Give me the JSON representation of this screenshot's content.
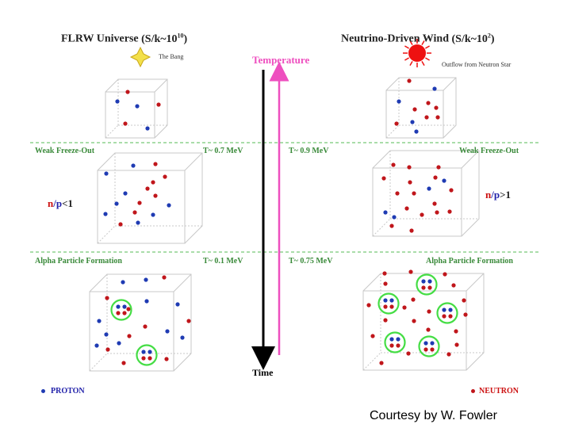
{
  "left_title": "FLRW Universe",
  "left_ratio_prefix": "(S/k~10",
  "left_ratio_exp": "10",
  "right_title": "Neutrino-Driven Wind",
  "right_ratio_prefix": "(S/k~10",
  "right_ratio_exp": "2",
  "left_source": "The Bang",
  "right_source": "Outflow from Neutron Star",
  "temperature_label": "Temperature",
  "time_label": "Time",
  "weak_freeze_out_left": "Weak Freeze-Out",
  "weak_freeze_out_right": "Weak Freeze-Out",
  "alpha_left": "Alpha Particle Formation",
  "alpha_right": "Alpha Particle Formation",
  "temp_weak_left": "T~ 0.7 MeV",
  "temp_weak_right": "T~ 0.9 MeV",
  "temp_alpha_left": "T~ 0.1 MeV",
  "temp_alpha_right": "T~ 0.75 MeV",
  "ratio_left": {
    "n": "n",
    "slash": "/",
    "p": "p",
    "rel": "<1"
  },
  "ratio_right": {
    "n": "n",
    "slash": "/",
    "p": "p",
    "rel": ">1"
  },
  "legend_proton": "PROTON",
  "legend_neutron": "NEUTRON",
  "credit": "Courtesy by W. Fowler",
  "colors": {
    "proton": "#1f3bb3",
    "neutron": "#c0161b",
    "alpha_ring": "#44dd44",
    "temperature_arrow": "#ee4fbf",
    "time_arrow": "#000000",
    "phase_line": "#55bb55",
    "star": "#ee1111",
    "bang": "#f3e04a"
  }
}
